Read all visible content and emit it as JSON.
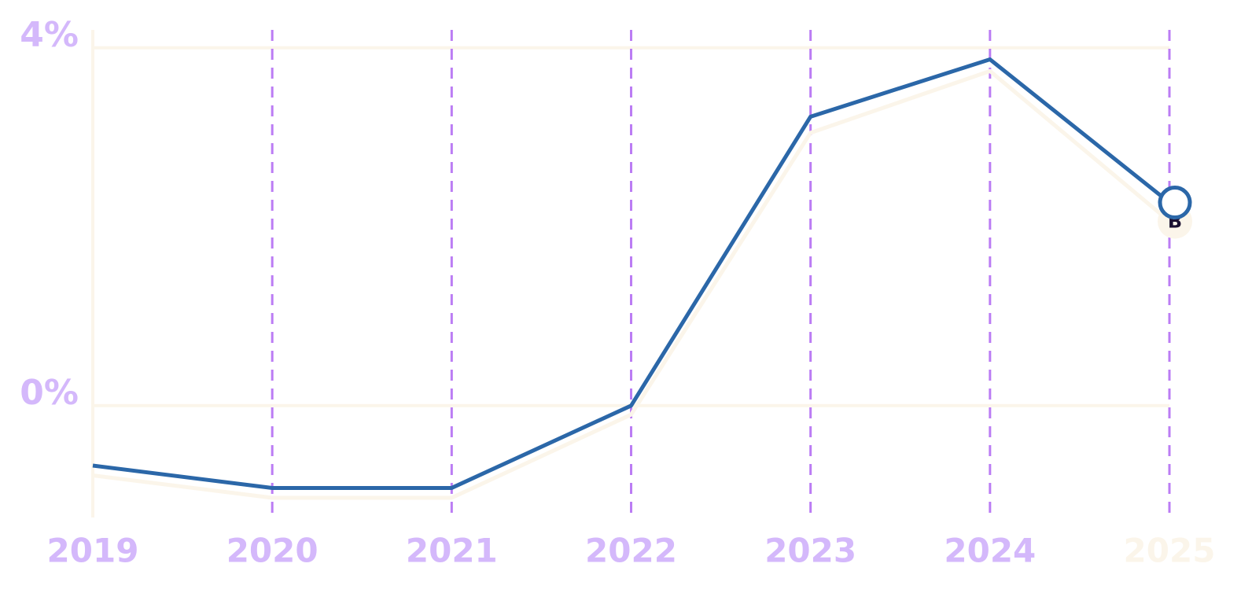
{
  "chart_data": {
    "type": "line",
    "categories": [
      "2019",
      "2020",
      "2021",
      "2022",
      "2023",
      "2024",
      "2025"
    ],
    "series": [
      {
        "color": "#fbf5ea",
        "values": [
          -0.78,
          -1.03,
          -1.03,
          -0.1,
          3.05,
          3.74,
          2.06
        ],
        "marker_label": "B"
      },
      {
        "color": "#2b67a8",
        "values": [
          -0.67,
          -0.92,
          -0.92,
          0,
          3.23,
          3.87,
          2.27
        ]
      }
    ],
    "ylim": [
      -1.25,
      4.2
    ],
    "yticks": [
      {
        "value": 0,
        "label": "0%"
      },
      {
        "value": 4,
        "label": "4%"
      }
    ],
    "label_color": "#d4b8fb",
    "category_line_color": "#bb7cf4",
    "axis_color": "#fbf5ea"
  }
}
